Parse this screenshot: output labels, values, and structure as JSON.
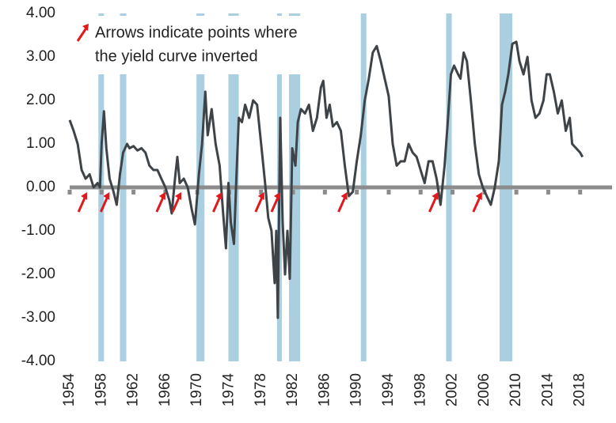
{
  "chart_data": {
    "type": "line",
    "annotation": [
      "Arrows indicate points where",
      "the yield curve inverted"
    ],
    "x": [
      1954.0,
      1954.5,
      1955.0,
      1955.5,
      1956.0,
      1956.5,
      1957.0,
      1957.5,
      1957.8,
      1958.0,
      1958.3,
      1958.6,
      1959.0,
      1959.5,
      1959.9,
      1960.3,
      1960.7,
      1961.2,
      1961.5,
      1962.0,
      1962.5,
      1963.0,
      1963.5,
      1964.0,
      1964.5,
      1965.0,
      1965.5,
      1966.0,
      1966.5,
      1966.8,
      1967.2,
      1967.5,
      1967.8,
      1968.3,
      1968.8,
      1969.3,
      1969.7,
      1970.2,
      1970.6,
      1971.0,
      1971.3,
      1971.8,
      1972.3,
      1972.8,
      1973.2,
      1973.6,
      1973.9,
      1974.2,
      1974.6,
      1974.9,
      1975.2,
      1975.6,
      1976.0,
      1976.5,
      1977.0,
      1977.5,
      1978.0,
      1978.5,
      1978.9,
      1979.3,
      1979.7,
      1979.9,
      1980.1,
      1980.4,
      1980.7,
      1981.0,
      1981.3,
      1981.6,
      1981.9,
      1982.3,
      1982.6,
      1983.0,
      1983.5,
      1984.0,
      1984.5,
      1985.0,
      1985.5,
      1985.8,
      1986.2,
      1986.6,
      1987.0,
      1987.5,
      1988.0,
      1988.5,
      1989.0,
      1989.5,
      1990.0,
      1990.5,
      1991.0,
      1991.5,
      1992.0,
      1992.5,
      1993.0,
      1993.5,
      1994.0,
      1994.5,
      1995.0,
      1995.5,
      1996.0,
      1996.5,
      1997.0,
      1997.5,
      1998.0,
      1998.5,
      1999.0,
      1999.5,
      2000.0,
      2000.5,
      2001.0,
      2001.4,
      2001.8,
      2002.2,
      2002.7,
      2003.0,
      2003.4,
      2003.8,
      2004.3,
      2004.8,
      2005.3,
      2005.8,
      2006.3,
      2006.8,
      2007.3,
      2007.8,
      2008.2,
      2008.6,
      2009.0,
      2009.5,
      2010.0,
      2010.4,
      2010.9,
      2011.4,
      2011.9,
      2012.4,
      2012.9,
      2013.4,
      2013.8,
      2014.2,
      2014.7,
      2015.2,
      2015.7,
      2016.2,
      2016.7,
      2017.0,
      2017.5,
      2018.0,
      2018.3
    ],
    "series": [
      {
        "color": "#3d4347",
        "values": [
          1.55,
          1.3,
          1.0,
          0.4,
          0.2,
          0.3,
          0.0,
          0.1,
          0.0,
          1.0,
          1.75,
          0.9,
          0.2,
          -0.1,
          -0.4,
          0.3,
          0.8,
          1.0,
          0.9,
          0.95,
          0.85,
          0.9,
          0.8,
          0.5,
          0.4,
          0.4,
          0.2,
          0.0,
          -0.3,
          -0.6,
          0.2,
          0.7,
          0.1,
          0.2,
          0.0,
          -0.5,
          -0.85,
          0.3,
          1.0,
          2.2,
          1.2,
          1.8,
          1.0,
          0.5,
          -0.5,
          -1.4,
          0.1,
          -0.8,
          -1.3,
          0.2,
          1.6,
          1.5,
          1.9,
          1.6,
          2.0,
          1.9,
          1.0,
          0.1,
          -0.7,
          -1.0,
          -2.2,
          -1.0,
          -3.0,
          1.6,
          -0.8,
          -2.0,
          -1.0,
          -2.1,
          0.9,
          0.5,
          1.5,
          1.8,
          1.7,
          1.9,
          1.3,
          1.6,
          2.3,
          2.45,
          1.6,
          1.9,
          1.4,
          1.5,
          1.3,
          0.5,
          -0.2,
          -0.1,
          0.6,
          1.2,
          2.0,
          2.5,
          3.1,
          3.25,
          2.9,
          2.5,
          2.1,
          1.0,
          0.5,
          0.6,
          0.6,
          1.0,
          0.8,
          0.7,
          0.4,
          0.1,
          0.6,
          0.6,
          0.2,
          -0.4,
          0.5,
          1.5,
          2.6,
          2.8,
          2.6,
          2.5,
          3.1,
          2.9,
          2.0,
          1.0,
          0.3,
          0.0,
          -0.2,
          -0.4,
          0.0,
          0.6,
          1.9,
          2.2,
          2.6,
          3.3,
          3.35,
          2.9,
          2.6,
          3.0,
          2.0,
          1.6,
          1.7,
          2.0,
          2.6,
          2.6,
          2.2,
          1.7,
          2.0,
          1.3,
          1.6,
          1.0,
          0.9,
          0.8,
          0.7
        ]
      }
    ],
    "recessions": [
      [
        1957.6,
        1958.3
      ],
      [
        1960.3,
        1961.1
      ],
      [
        1969.9,
        1970.9
      ],
      [
        1973.9,
        1975.2
      ],
      [
        1980.0,
        1980.6
      ],
      [
        1981.5,
        1982.9
      ],
      [
        1990.5,
        1991.2
      ],
      [
        2001.2,
        2001.9
      ],
      [
        2007.9,
        2009.5
      ]
    ],
    "recession_color": "#a9cfe0",
    "inversions": [
      1956.0,
      1958.8,
      1965.8,
      1967.8,
      1972.9,
      1978.2,
      1980.2,
      1988.6,
      2000.0,
      2005.5
    ],
    "arrow_color": "#e0191c",
    "xlim": [
      1954,
      2022
    ],
    "xticks": [
      1954,
      1958,
      1962,
      1966,
      1970,
      1974,
      1978,
      1982,
      1986,
      1990,
      1994,
      1998,
      2002,
      2006,
      2010,
      2014,
      2018
    ],
    "ylim": [
      -4,
      4
    ],
    "yticks": [
      {
        "value": -4,
        "label": "-4.00"
      },
      {
        "value": -3,
        "label": "-3.00"
      },
      {
        "value": -2,
        "label": "-2.00"
      },
      {
        "value": -1,
        "label": "-1.00"
      },
      {
        "value": 0,
        "label": "0.00"
      },
      {
        "value": 1,
        "label": "1.00"
      },
      {
        "value": 2,
        "label": "2.00"
      },
      {
        "value": 3,
        "label": "3.00"
      },
      {
        "value": 4,
        "label": "4.00"
      }
    ]
  }
}
